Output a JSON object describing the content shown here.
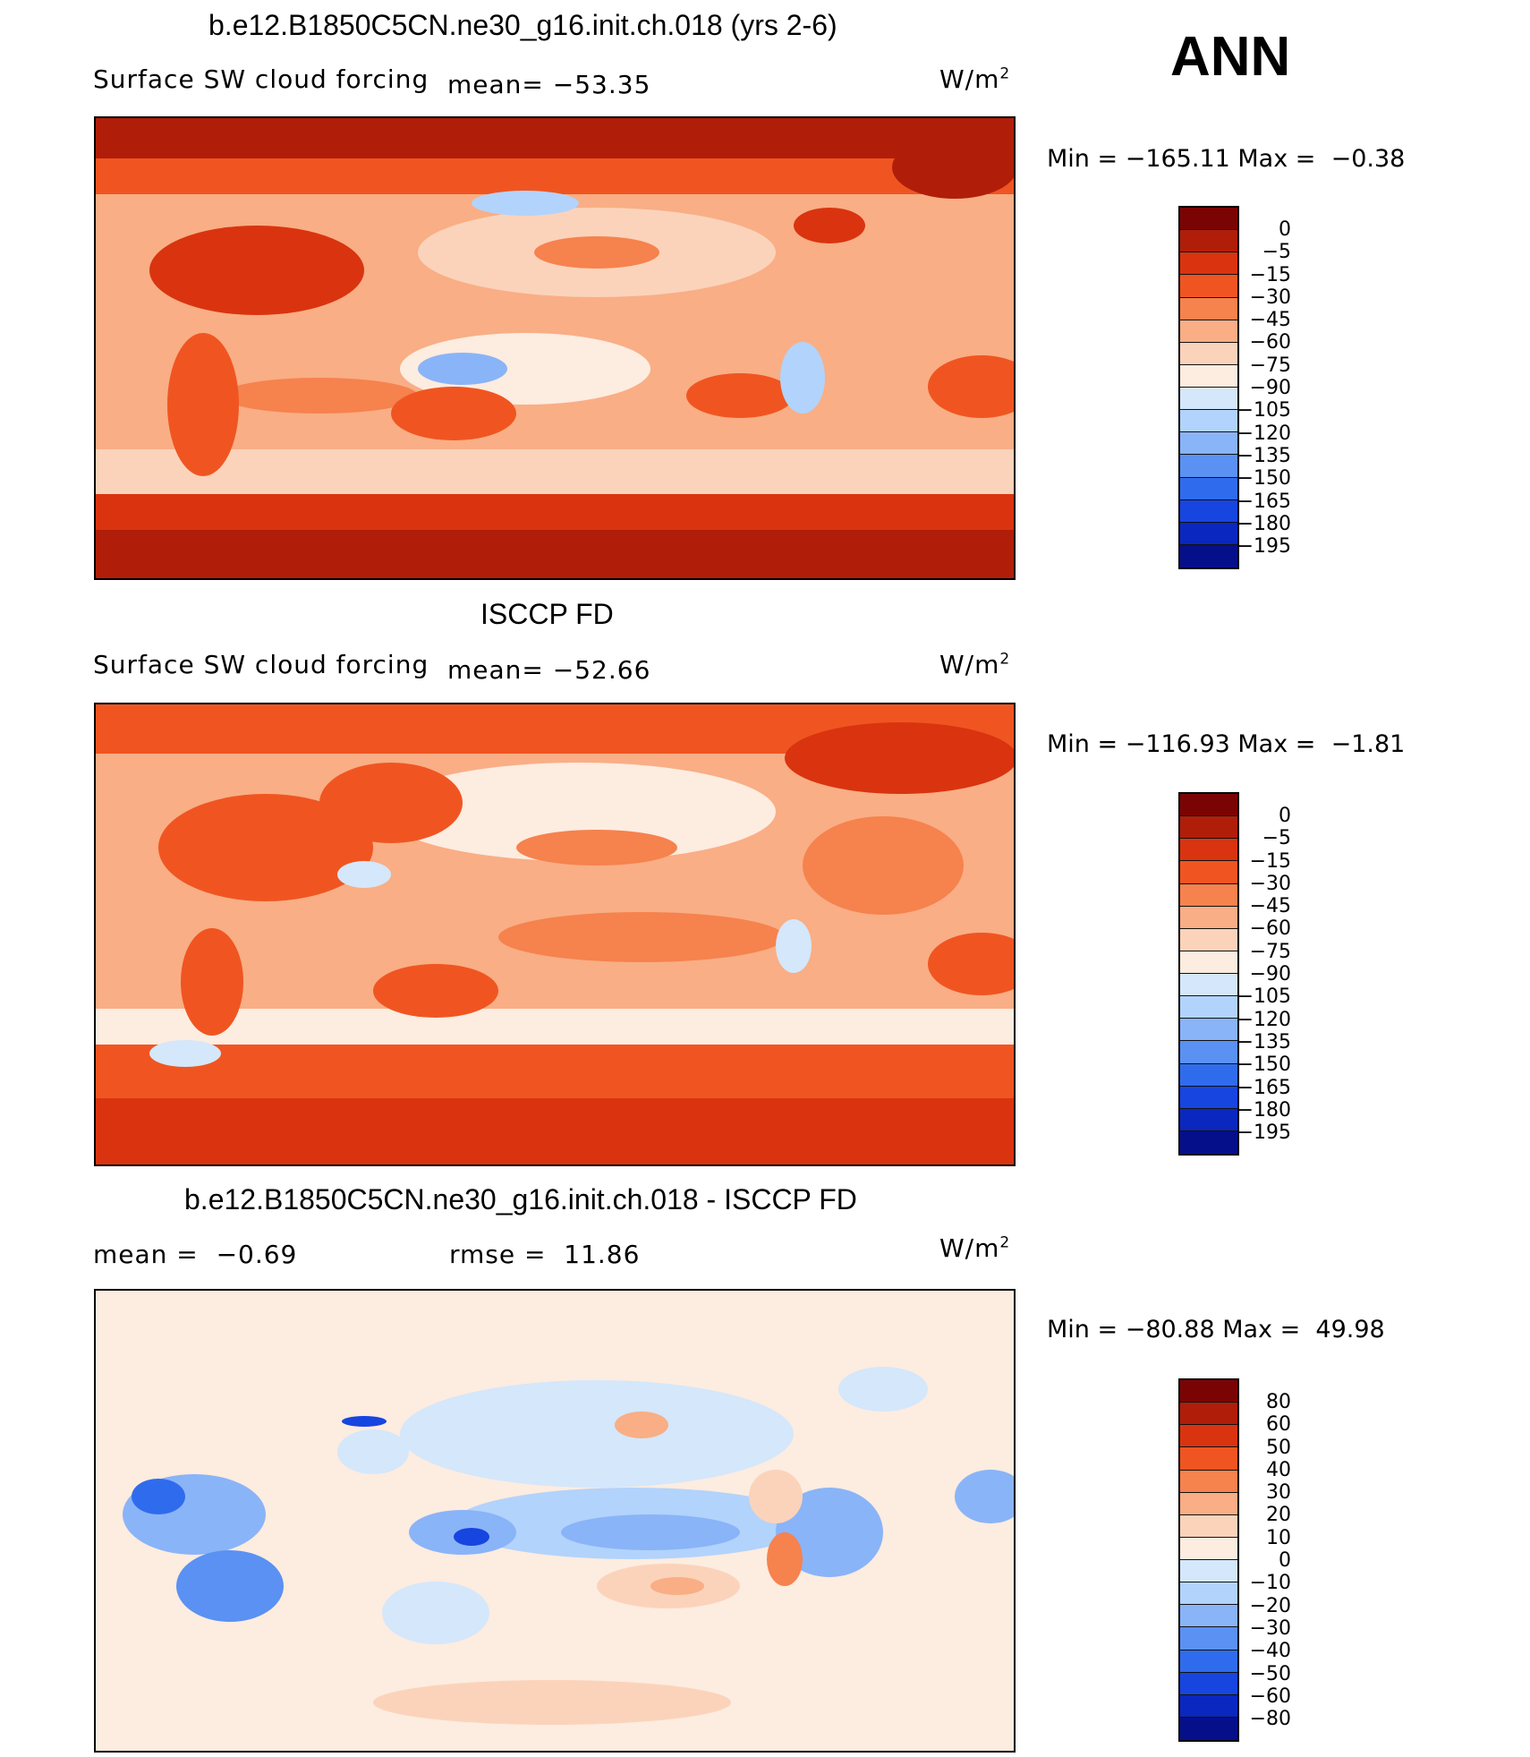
{
  "header": {
    "season": "ANN"
  },
  "colormaps": {
    "cloud_forcing": [
      "#7a0403",
      "#b01e0a",
      "#d9340f",
      "#f05521",
      "#f6824e",
      "#f9ae85",
      "#fbd3bb",
      "#fdece0",
      "#d4e7fb",
      "#b2d3fb",
      "#8ab4f8",
      "#5a91f3",
      "#2f6ced",
      "#1745e0",
      "#0a27c0",
      "#050f8a"
    ],
    "difference": [
      "#7a0403",
      "#b01e0a",
      "#d9340f",
      "#f05521",
      "#f6824e",
      "#f9ae85",
      "#fbd3bb",
      "#fdece0",
      "#d4e7fb",
      "#b2d3fb",
      "#8ab4f8",
      "#5a91f3",
      "#2f6ced",
      "#1745e0",
      "#0a27c0",
      "#050f8a"
    ]
  },
  "panels": [
    {
      "title": "b.e12.B1850C5CN.ne30_g16.init.ch.018 (yrs 2-6)",
      "left_label": "Surface SW cloud forcing",
      "mean_label": "mean= −53.35",
      "units": "W/m",
      "units_sup": "2",
      "minmax": "Min = −165.11 Max =  −0.38",
      "levels": [
        "0",
        "−5",
        "−15",
        "−30",
        "−45",
        "−60",
        "−75",
        "−90",
        "−105",
        "−120",
        "−135",
        "−150",
        "−165",
        "−180",
        "−195"
      ],
      "field": "model"
    },
    {
      "title": "ISCCP FD",
      "left_label": "Surface SW cloud forcing",
      "mean_label": "mean= −52.66",
      "units": "W/m",
      "units_sup": "2",
      "minmax": "Min = −116.93 Max =  −1.81",
      "levels": [
        "0",
        "−5",
        "−15",
        "−30",
        "−45",
        "−60",
        "−75",
        "−90",
        "−105",
        "−120",
        "−135",
        "−150",
        "−165",
        "−180",
        "−195"
      ],
      "field": "obs"
    },
    {
      "title": "b.e12.B1850C5CN.ne30_g16.init.ch.018 - ISCCP FD",
      "left_label": "mean =  −0.69",
      "mean_label": "rmse =  11.86",
      "units": "W/m",
      "units_sup": "2",
      "minmax": "Min = −80.88 Max =  49.98",
      "levels": [
        "80",
        "60",
        "50",
        "40",
        "30",
        "20",
        "10",
        "0",
        "−10",
        "−20",
        "−30",
        "−40",
        "−50",
        "−60",
        "−80"
      ],
      "field": "diff"
    }
  ]
}
